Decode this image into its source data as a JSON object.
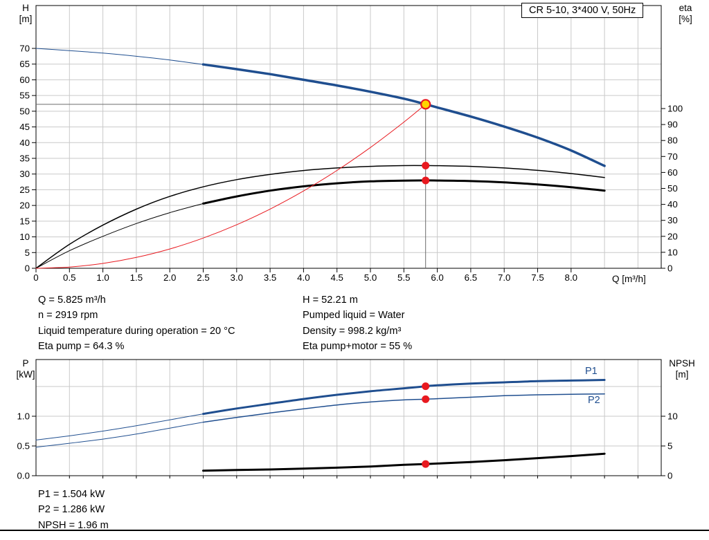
{
  "colors": {
    "curve_blue": "#1f4e8f",
    "curve_black": "#000000",
    "curve_red": "#e8191f",
    "marker_red": "#e8191f",
    "op_fill": "#ffd400",
    "grid": "#c9c9c9",
    "axis": "#000000",
    "crosshair": "#6b6b6b"
  },
  "chart_data": [
    {
      "id": "qh-eta",
      "type": "line",
      "title": "CR 5-10, 3*400 V, 50Hz",
      "x_axis": {
        "label": "Q [m³/h]",
        "min": 0,
        "max": 9.35,
        "tick_labels": [
          "0",
          "0.5",
          "1.0",
          "1.5",
          "2.0",
          "2.5",
          "3.0",
          "3.5",
          "4.0",
          "4.5",
          "5.0",
          "5.5",
          "6.0",
          "6.5",
          "7.0",
          "7.5",
          "8.0"
        ]
      },
      "y_left": {
        "name": "H",
        "unit": "[m]",
        "min": 0,
        "max": 70,
        "tick_labels": [
          "0",
          "5",
          "10",
          "15",
          "20",
          "25",
          "30",
          "35",
          "40",
          "45",
          "50",
          "55",
          "60",
          "65",
          "70"
        ]
      },
      "y_right": {
        "name": "eta",
        "unit": "[%]",
        "min": 0,
        "max": 100,
        "tick_labels": [
          "0",
          "10",
          "20",
          "30",
          "40",
          "50",
          "60",
          "70",
          "80",
          "90",
          "100"
        ]
      },
      "series": [
        {
          "name": "h-curve-extension",
          "axis": "left",
          "color": "blue",
          "width": 1,
          "x": [
            0,
            0.5,
            1,
            1.5,
            2,
            2.5
          ],
          "y": [
            70,
            69.3,
            68.5,
            67.5,
            66.3,
            64.9
          ]
        },
        {
          "name": "h-curve",
          "axis": "left",
          "color": "blue",
          "width": 3.5,
          "x": [
            2.5,
            3,
            3.5,
            4,
            4.5,
            5,
            5.5,
            5.825,
            6,
            6.5,
            7,
            7.5,
            8,
            8.5
          ],
          "y": [
            64.9,
            63.4,
            61.8,
            60.0,
            58.2,
            56.2,
            54.0,
            52.21,
            51.2,
            48.3,
            45.1,
            41.6,
            37.5,
            32.6
          ]
        },
        {
          "name": "eta-pump-curve",
          "axis": "right",
          "color": "black",
          "width": 1.5,
          "x": [
            0,
            0.5,
            1,
            1.5,
            2,
            2.5,
            3,
            3.5,
            4,
            4.5,
            5,
            5.5,
            5.825,
            6,
            6.5,
            7,
            7.5,
            8,
            8.5
          ],
          "y": [
            0,
            15,
            27,
            37,
            45,
            51,
            55.5,
            58.8,
            61.2,
            62.8,
            63.8,
            64.3,
            64.3,
            64.25,
            63.8,
            62.8,
            61.3,
            59.3,
            56.8
          ]
        },
        {
          "name": "eta-pump-motor-extension",
          "axis": "right",
          "color": "black",
          "width": 1,
          "x": [
            0,
            0.5,
            1,
            1.5,
            2,
            2.5
          ],
          "y": [
            0,
            11,
            20,
            28,
            34.8,
            40.5
          ]
        },
        {
          "name": "eta-pump-motor-curve",
          "axis": "right",
          "color": "black",
          "width": 3,
          "x": [
            2.5,
            3,
            3.5,
            4,
            4.5,
            5,
            5.5,
            5.825,
            6,
            6.5,
            7,
            7.5,
            8,
            8.5
          ],
          "y": [
            40.5,
            45,
            48.6,
            51.3,
            53.2,
            54.4,
            54.9,
            55,
            54.95,
            54.6,
            53.8,
            52.5,
            50.8,
            48.6
          ]
        },
        {
          "name": "system-curve",
          "axis": "left",
          "color": "red",
          "width": 1,
          "x": [
            0,
            0.5,
            1,
            1.5,
            2,
            2.5,
            3,
            3.5,
            4,
            4.5,
            5,
            5.5,
            5.825
          ],
          "y": [
            0,
            0.38,
            1.54,
            3.46,
            6.15,
            9.62,
            13.85,
            18.85,
            24.62,
            31.15,
            38.46,
            46.54,
            52.21
          ]
        }
      ],
      "markers": [
        {
          "name": "operating-point",
          "q": 5.825,
          "v": 52.21,
          "axis": "left",
          "style": "op"
        },
        {
          "name": "eta-pump-dot",
          "q": 5.825,
          "v": 64.3,
          "axis": "right",
          "style": "dot"
        },
        {
          "name": "eta-pump-motor-dot",
          "q": 5.825,
          "v": 55,
          "axis": "right",
          "style": "dot"
        }
      ],
      "crosshair": {
        "q": 5.825,
        "h": 52.21
      }
    },
    {
      "id": "power-npsh",
      "type": "line",
      "title": "",
      "x_axis": {
        "label": "",
        "min": 0,
        "max": 9.35,
        "tick_labels": []
      },
      "y_left": {
        "name": "P",
        "unit": "[kW]",
        "min": 0,
        "max": 1.95,
        "tick_labels": [
          "0.0",
          "0.5",
          "1.0"
        ]
      },
      "y_right": {
        "name": "NPSH",
        "unit": "[m]",
        "min": 0,
        "max": 19.5,
        "tick_labels": [
          "0",
          "5",
          "10"
        ]
      },
      "series_labels": {
        "P1": "P1",
        "P2": "P2"
      },
      "series": [
        {
          "name": "p1-curve-extension",
          "axis": "left",
          "color": "blue",
          "width": 1,
          "x": [
            0,
            0.5,
            1,
            1.5,
            2,
            2.5
          ],
          "y": [
            0.6,
            0.67,
            0.75,
            0.84,
            0.94,
            1.04
          ]
        },
        {
          "name": "p1-curve",
          "axis": "left",
          "color": "blue",
          "width": 3,
          "x": [
            2.5,
            3,
            3.5,
            4,
            4.5,
            5,
            5.5,
            5.825,
            6,
            6.5,
            7,
            7.5,
            8,
            8.5
          ],
          "y": [
            1.04,
            1.13,
            1.21,
            1.29,
            1.36,
            1.42,
            1.47,
            1.504,
            1.52,
            1.55,
            1.57,
            1.59,
            1.6,
            1.61
          ]
        },
        {
          "name": "p2-curve-extension",
          "axis": "left",
          "color": "blue",
          "width": 1,
          "x": [
            0,
            0.5,
            1,
            1.5,
            2,
            2.5
          ],
          "y": [
            0.48,
            0.545,
            0.615,
            0.7,
            0.8,
            0.9
          ]
        },
        {
          "name": "p2-curve",
          "axis": "left",
          "color": "blue",
          "width": 1.5,
          "x": [
            2.5,
            3,
            3.5,
            4,
            4.5,
            5,
            5.5,
            5.825,
            6,
            6.5,
            7,
            7.5,
            8,
            8.5
          ],
          "y": [
            0.9,
            0.98,
            1.055,
            1.125,
            1.19,
            1.24,
            1.275,
            1.286,
            1.295,
            1.32,
            1.345,
            1.36,
            1.37,
            1.375
          ]
        },
        {
          "name": "npsh-curve",
          "axis": "right",
          "color": "black",
          "width": 3,
          "x": [
            2.5,
            3,
            3.5,
            4,
            4.5,
            5,
            5.5,
            5.825,
            6,
            6.5,
            7,
            7.5,
            8,
            8.5
          ],
          "y": [
            0.85,
            0.95,
            1.05,
            1.2,
            1.35,
            1.55,
            1.82,
            1.96,
            2.05,
            2.3,
            2.6,
            2.95,
            3.3,
            3.7
          ]
        }
      ],
      "markers": [
        {
          "name": "p1-dot",
          "q": 5.825,
          "v": 1.504,
          "axis": "left",
          "style": "dot"
        },
        {
          "name": "p2-dot",
          "q": 5.825,
          "v": 1.286,
          "axis": "left",
          "style": "dot"
        },
        {
          "name": "npsh-dot",
          "q": 5.825,
          "v": 1.96,
          "axis": "right",
          "style": "dot"
        }
      ]
    }
  ],
  "info": {
    "top_left": [
      "Q = 5.825 m³/h",
      "n = 2919 rpm",
      "Liquid temperature during operation = 20 °C",
      "Eta pump = 64.3 %"
    ],
    "top_right": [
      "H = 52.21 m",
      "Pumped liquid = Water",
      "Density = 998.2 kg/m³",
      "Eta pump+motor = 55 %"
    ],
    "bottom": [
      "P1 = 1.504 kW",
      "P2 = 1.286 kW",
      "NPSH = 1.96 m"
    ]
  }
}
